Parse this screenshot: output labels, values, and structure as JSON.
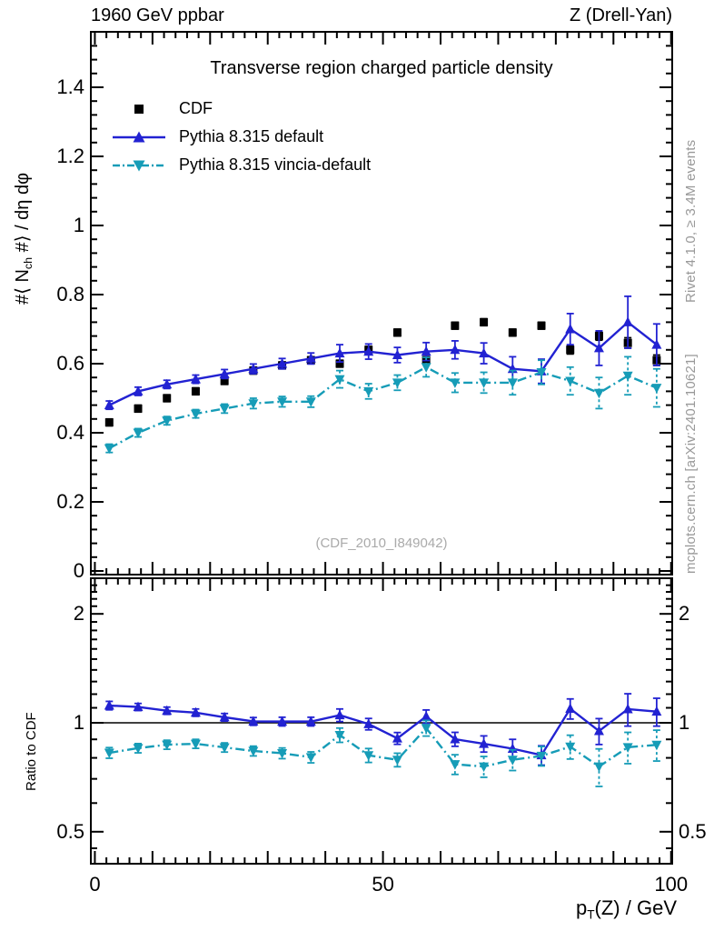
{
  "header": {
    "left": "1960 GeV ppbar",
    "right": "Z (Drell-Yan)"
  },
  "title": "Transverse region charged particle density",
  "watermark": "(CDF_2010_I849042)",
  "side_notes": {
    "top": "Rivet 4.1.0, ≥ 3.4M events",
    "bottom": "mcplots.cern.ch [arXiv:2401.10621]"
  },
  "axes": {
    "y_label": {
      "pre": "#⟨ N",
      "sub": "ch",
      "post": " #⟩ / dη dφ"
    },
    "x_label": {
      "pre": "p",
      "sub": "T",
      "post": "(Z) / GeV"
    },
    "ratio_label": "Ratio to CDF",
    "main_y_ticks": [
      {
        "v": 0,
        "label": "0"
      },
      {
        "v": 0.2,
        "label": "0.2"
      },
      {
        "v": 0.4,
        "label": "0.4"
      },
      {
        "v": 0.6,
        "label": "0.6"
      },
      {
        "v": 0.8,
        "label": "0.8"
      },
      {
        "v": 1,
        "label": "1"
      },
      {
        "v": 1.2,
        "label": "1.2"
      },
      {
        "v": 1.4,
        "label": "1.4"
      }
    ],
    "x_ticks": [
      {
        "v": 0,
        "label": "0"
      },
      {
        "v": 50,
        "label": "50"
      },
      {
        "v": 100,
        "label": "100"
      }
    ],
    "ratio_y_ticks": [
      {
        "v": 0.5,
        "label": "0.5"
      },
      {
        "v": 1,
        "label": "1"
      },
      {
        "v": 2,
        "label": "2"
      }
    ]
  },
  "legend": [
    {
      "label": "CDF"
    },
    {
      "label": "Pythia 8.315 default"
    },
    {
      "label": "Pythia 8.315 vincia-default"
    }
  ],
  "colors": {
    "cdf": "#000000",
    "pythia_default": "#2222d2",
    "pythia_vincia": "#169cb7",
    "ratio_ref_line": "#000000",
    "gray_text": "#999999",
    "watermark": "#aaaaaa"
  },
  "chart_data": [
    {
      "type": "scatter",
      "title": "Transverse region charged particle density",
      "xlabel": "pT(Z) / GeV",
      "ylabel": "#< N_ch #> / deta dphi",
      "xlim": [
        -0.7,
        100.2
      ],
      "ylim": [
        -0.01,
        1.56
      ],
      "grid": false,
      "legend_position": "top-left",
      "x": [
        2.5,
        7.5,
        12.5,
        17.5,
        22.5,
        27.5,
        32.5,
        37.5,
        42.5,
        47.5,
        52.5,
        57.5,
        62.5,
        67.5,
        72.5,
        77.5,
        82.5,
        87.5,
        92.5,
        97.5
      ],
      "series": [
        {
          "name": "CDF",
          "marker": "square",
          "color": "#000000",
          "line": "none",
          "values": [
            0.43,
            0.47,
            0.5,
            0.52,
            0.55,
            0.58,
            0.595,
            0.61,
            0.6,
            0.64,
            0.69,
            0.61,
            0.71,
            0.72,
            0.69,
            0.71,
            0.64,
            0.68,
            0.66,
            0.61
          ],
          "errors": [
            0.01,
            0.01,
            0.01,
            0.01,
            0.01,
            0.01,
            0.01,
            0.01,
            0.01,
            0.01,
            0.01,
            0.01,
            0.01,
            0.01,
            0.01,
            0.01,
            0.012,
            0.012,
            0.015,
            0.015
          ]
        },
        {
          "name": "Pythia 8.315 default",
          "marker": "triangle-up",
          "color": "#2222d2",
          "line": "solid",
          "values": [
            0.48,
            0.52,
            0.54,
            0.555,
            0.57,
            0.585,
            0.6,
            0.615,
            0.63,
            0.635,
            0.625,
            0.635,
            0.64,
            0.63,
            0.585,
            0.578,
            0.7,
            0.645,
            0.72,
            0.655
          ],
          "errors": [
            0.012,
            0.012,
            0.012,
            0.012,
            0.013,
            0.014,
            0.015,
            0.016,
            0.025,
            0.022,
            0.022,
            0.026,
            0.026,
            0.03,
            0.035,
            0.035,
            0.045,
            0.05,
            0.075,
            0.06
          ]
        },
        {
          "name": "Pythia 8.315 vincia-default",
          "marker": "triangle-down",
          "color": "#169cb7",
          "line": "dashdot",
          "values": [
            0.355,
            0.4,
            0.435,
            0.455,
            0.47,
            0.485,
            0.49,
            0.49,
            0.555,
            0.52,
            0.545,
            0.59,
            0.545,
            0.545,
            0.545,
            0.575,
            0.55,
            0.515,
            0.565,
            0.53
          ],
          "errors": [
            0.012,
            0.012,
            0.012,
            0.012,
            0.013,
            0.015,
            0.015,
            0.016,
            0.025,
            0.022,
            0.022,
            0.028,
            0.028,
            0.03,
            0.035,
            0.035,
            0.04,
            0.045,
            0.055,
            0.055
          ]
        }
      ]
    },
    {
      "type": "scatter",
      "title": "Ratio to CDF",
      "yscale": "log",
      "ylim": [
        0.41,
        2.52
      ],
      "grid": false,
      "x": [
        2.5,
        7.5,
        12.5,
        17.5,
        22.5,
        27.5,
        32.5,
        37.5,
        42.5,
        47.5,
        52.5,
        57.5,
        62.5,
        67.5,
        72.5,
        77.5,
        82.5,
        87.5,
        92.5,
        97.5
      ],
      "reference_line": 1,
      "series": [
        {
          "name": "Pythia 8.315 default",
          "marker": "triangle-up",
          "color": "#2222d2",
          "line": "solid",
          "values": [
            1.116,
            1.106,
            1.08,
            1.067,
            1.036,
            1.009,
            1.008,
            1.008,
            1.05,
            0.992,
            0.906,
            1.041,
            0.901,
            0.875,
            0.848,
            0.814,
            1.094,
            0.949,
            1.091,
            1.074
          ],
          "errors": [
            0.03,
            0.025,
            0.025,
            0.025,
            0.025,
            0.025,
            0.028,
            0.028,
            0.042,
            0.036,
            0.034,
            0.044,
            0.04,
            0.045,
            0.052,
            0.05,
            0.07,
            0.078,
            0.112,
            0.095
          ]
        },
        {
          "name": "Pythia 8.315 vincia-default",
          "marker": "triangle-down",
          "color": "#169cb7",
          "line": "dashdot",
          "values": [
            0.826,
            0.851,
            0.87,
            0.875,
            0.855,
            0.836,
            0.824,
            0.803,
            0.925,
            0.813,
            0.79,
            0.967,
            0.768,
            0.757,
            0.79,
            0.81,
            0.859,
            0.757,
            0.856,
            0.869
          ],
          "errors": [
            0.028,
            0.025,
            0.025,
            0.025,
            0.025,
            0.026,
            0.028,
            0.028,
            0.042,
            0.036,
            0.034,
            0.048,
            0.048,
            0.05,
            0.052,
            0.05,
            0.065,
            0.09,
            0.085,
            0.085
          ]
        }
      ]
    }
  ]
}
